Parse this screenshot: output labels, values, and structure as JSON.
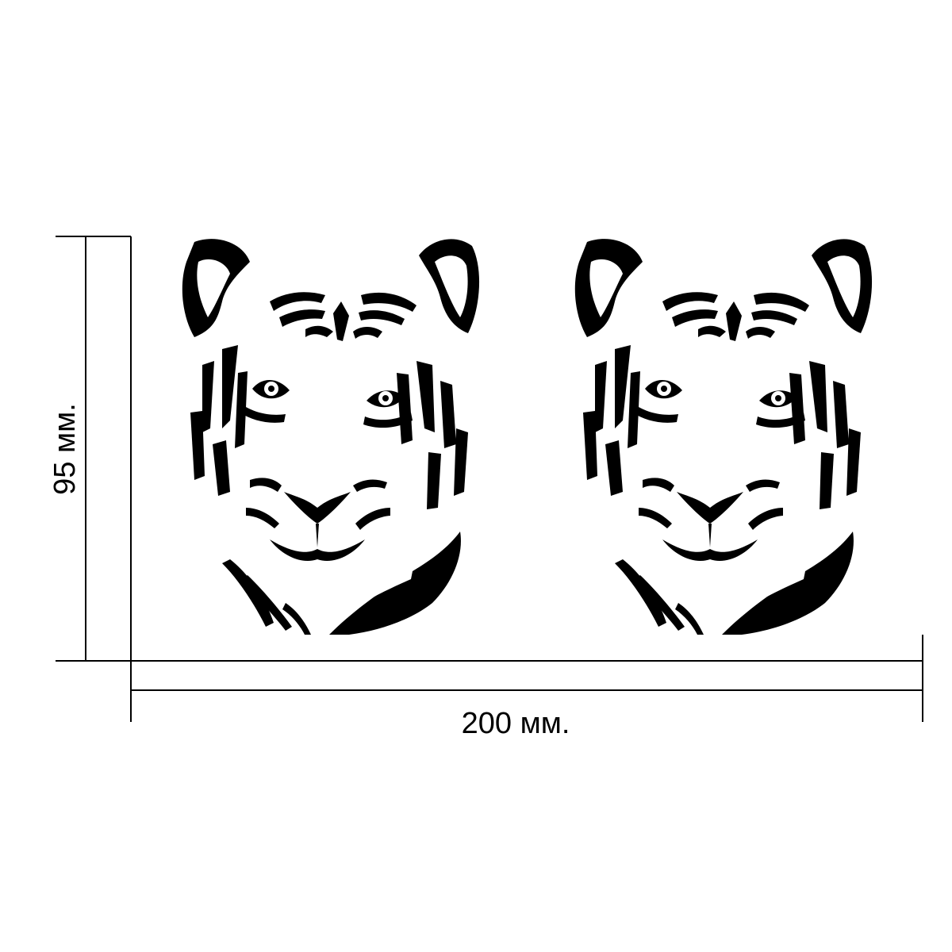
{
  "dimensions": {
    "height_label": "95 мм.",
    "width_label": "200 мм."
  },
  "artwork": [
    {
      "subject": "tiger-head"
    },
    {
      "subject": "tiger-head"
    }
  ],
  "colors": {
    "ink": "#000000",
    "background": "#ffffff"
  }
}
